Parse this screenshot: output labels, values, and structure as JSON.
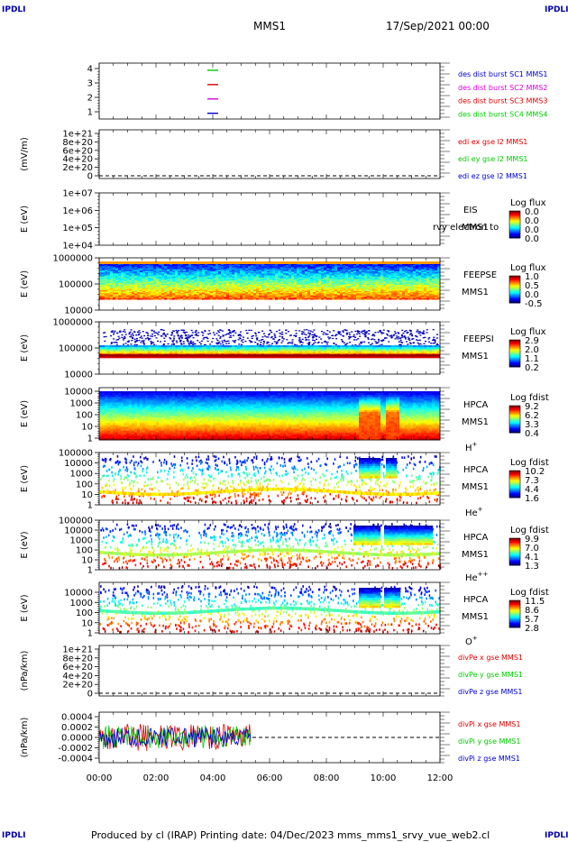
{
  "corner_label": "IPDLI",
  "header": {
    "spacecraft": "MMS1",
    "date": "17/Sep/2021 00:00"
  },
  "footer": {
    "text": "Produced by cl (IRAP)    Printing date: 04/Dec/2023    mms_mms1_srvy_vue_web2.cl"
  },
  "colors": {
    "blue": "#0000cc",
    "red": "#dd0000",
    "green": "#00cc00",
    "magenta": "#dd00dd",
    "dash": "#000000"
  },
  "chart_data": [
    {
      "id": "burst",
      "type": "line",
      "yticks": [
        "4",
        "3",
        "2",
        "1"
      ],
      "markers": [
        {
          "y": 4,
          "color": "#00cc00"
        },
        {
          "y": 3,
          "color": "#dd0000"
        },
        {
          "y": 2,
          "color": "#dd00dd"
        },
        {
          "y": 1,
          "color": "#0000cc"
        }
      ],
      "legend": [
        {
          "text": "des dist burst SC1 MMS1",
          "color": "#0000cc"
        },
        {
          "text": "des dist burst SC2 MMS2",
          "color": "#dd00dd"
        },
        {
          "text": "des dist burst SC3 MMS3",
          "color": "#dd0000"
        },
        {
          "text": "des dist burst SC4 MMS4",
          "color": "#00cc00"
        }
      ]
    },
    {
      "id": "edi",
      "type": "line",
      "ylabel": "(mV/m)",
      "yticks": [
        "1e+21",
        "8e+20",
        "6e+20",
        "4e+20",
        "2e+20",
        "0"
      ],
      "legend": [
        {
          "text": "edi ex gse l2 MMS1",
          "color": "#dd0000"
        },
        {
          "text": "edi ey gse l2 MMS1",
          "color": "#00cc00"
        },
        {
          "text": "edi ez gse l2 MMS1",
          "color": "#0000cc"
        }
      ]
    },
    {
      "id": "eis",
      "type": "heatmap",
      "ylabel": "E (eV)",
      "yticks": [
        "1e+07",
        "1e+06",
        "1e+05",
        "1e+04"
      ],
      "name": "EIS",
      "overlap": "rvy electron to",
      "sc": "MMS1",
      "cbar_title": "Log flux",
      "cbar_ticks": [
        "0.0",
        "0.0",
        "0.0",
        "0.0"
      ]
    },
    {
      "id": "feepse",
      "type": "heatmap",
      "ylabel": "E (eV)",
      "yticks": [
        "1000000",
        "100000",
        "10000"
      ],
      "name": "FEEPSE",
      "sc": "MMS1",
      "cbar_title": "Log flux",
      "cbar_ticks": [
        "1.0",
        "0.5",
        "0.0",
        "-0.5"
      ]
    },
    {
      "id": "feepsi",
      "type": "heatmap",
      "ylabel": "E (eV)",
      "yticks": [
        "1000000",
        "100000",
        "10000"
      ],
      "name": "FEEPSI",
      "sc": "MMS1",
      "cbar_title": "Log flux",
      "cbar_ticks": [
        "2.9",
        "2.0",
        "1.1",
        "0.2"
      ]
    },
    {
      "id": "hpca_h",
      "type": "heatmap",
      "ylabel": "E (eV)",
      "yticks": [
        "10000",
        "1000",
        "100",
        "10",
        "1"
      ],
      "name": "HPCA",
      "sc": "MMS1",
      "species": "H",
      "charge": "+",
      "cbar_title": "Log fdist",
      "cbar_ticks": [
        "9.2",
        "6.2",
        "3.3",
        "0.4"
      ]
    },
    {
      "id": "hpca_he",
      "type": "heatmap",
      "ylabel": "E (eV)",
      "yticks": [
        "100000",
        "10000",
        "1000",
        "100",
        "10",
        "1"
      ],
      "name": "HPCA",
      "sc": "MMS1",
      "species": "He",
      "charge": "+",
      "cbar_title": "Log fdist",
      "cbar_ticks": [
        "10.2",
        "7.3",
        "4.4",
        "1.6"
      ]
    },
    {
      "id": "hpca_he2",
      "type": "heatmap",
      "ylabel": "E (eV)",
      "yticks": [
        "100000",
        "10000",
        "1000",
        "100",
        "10",
        "1"
      ],
      "name": "HPCA",
      "sc": "MMS1",
      "species": "He",
      "charge": "++",
      "cbar_title": "Log fdist",
      "cbar_ticks": [
        "9.9",
        "7.0",
        "4.1",
        "1.3"
      ]
    },
    {
      "id": "hpca_o",
      "type": "heatmap",
      "ylabel": "E (eV)",
      "yticks": [
        "10000",
        "1000",
        "100",
        "10",
        "1"
      ],
      "name": "HPCA",
      "sc": "MMS1",
      "species": "O",
      "charge": "+",
      "cbar_title": "Log fdist",
      "cbar_ticks": [
        "11.5",
        "8.6",
        "5.7",
        "2.8"
      ]
    },
    {
      "id": "divpe",
      "type": "line",
      "ylabel": "(nPa/km)",
      "yticks": [
        "1e+21",
        "8e+20",
        "6e+20",
        "4e+20",
        "2e+20",
        "0"
      ],
      "legend": [
        {
          "text": "divPe x gse MMS1",
          "color": "#dd0000"
        },
        {
          "text": "divPe y gse MMS1",
          "color": "#00cc00"
        },
        {
          "text": "divPe z gse MMS1",
          "color": "#0000cc"
        }
      ]
    },
    {
      "id": "divpi",
      "type": "line",
      "ylabel": "(nPa/km)",
      "yticks": [
        "0.0004",
        "0.0002",
        "0.0000",
        "-0.0002",
        "-0.0004"
      ],
      "legend": [
        {
          "text": "divPi x gse MMS1",
          "color": "#dd0000"
        },
        {
          "text": "divPi y gse MMS1",
          "color": "#00cc00"
        },
        {
          "text": "divPi z gse MMS1",
          "color": "#0000cc"
        }
      ]
    }
  ],
  "xaxis": {
    "ticks": [
      "00:00",
      "02:00",
      "04:00",
      "06:00",
      "08:00",
      "10:00",
      "12:00"
    ],
    "range": [
      "00:00",
      "12:00"
    ]
  }
}
